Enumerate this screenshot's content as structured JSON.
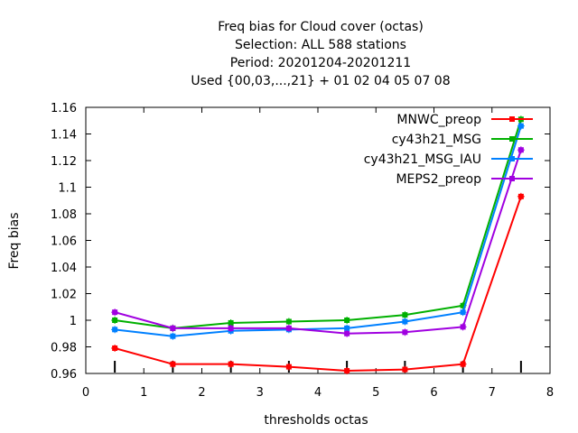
{
  "chart_data": {
    "type": "line",
    "title_lines": [
      "Freq bias  for Cloud cover (octas)",
      "Selection: ALL    588 stations",
      "Period: 20201204-20201211",
      "Used {00,03,...,21} + 01 02 04 05 07 08"
    ],
    "xlabel": "thresholds octas",
    "ylabel": "Freq bias",
    "xlim": [
      0,
      8
    ],
    "ylim": [
      0.96,
      1.16
    ],
    "xticks": [
      "0",
      "1",
      "2",
      "3",
      "4",
      "5",
      "6",
      "7",
      "8"
    ],
    "yticks": [
      "0.96",
      "0.98",
      "1",
      "1.02",
      "1.04",
      "1.06",
      "1.08",
      "1.1",
      "1.12",
      "1.14",
      "1.16"
    ],
    "grid": false,
    "legend_position": "top-right",
    "sample_marks_x": [
      0.5,
      1.5,
      2.5,
      3.5,
      4.5,
      5.5,
      6.5,
      7.5
    ],
    "x": [
      0.5,
      1.5,
      2.5,
      3.5,
      4.5,
      5.5,
      6.5,
      7.5
    ],
    "series": [
      {
        "name": "MNWC_preop",
        "color": "#ff0000",
        "values": [
          0.979,
          0.967,
          0.967,
          0.965,
          0.962,
          0.963,
          0.967,
          1.093
        ]
      },
      {
        "name": "cy43h21_MSG",
        "color": "#00b000",
        "values": [
          1.0,
          0.994,
          0.998,
          0.999,
          1.0,
          1.004,
          1.011,
          1.151
        ]
      },
      {
        "name": "cy43h21_MSG_IAU",
        "color": "#0080ff",
        "values": [
          0.993,
          0.988,
          0.992,
          0.993,
          0.994,
          0.999,
          1.006,
          1.146
        ]
      },
      {
        "name": "MEPS2_preop",
        "color": "#a000e0",
        "values": [
          1.006,
          0.994,
          0.994,
          0.994,
          0.99,
          0.991,
          0.995,
          1.128
        ]
      }
    ]
  }
}
